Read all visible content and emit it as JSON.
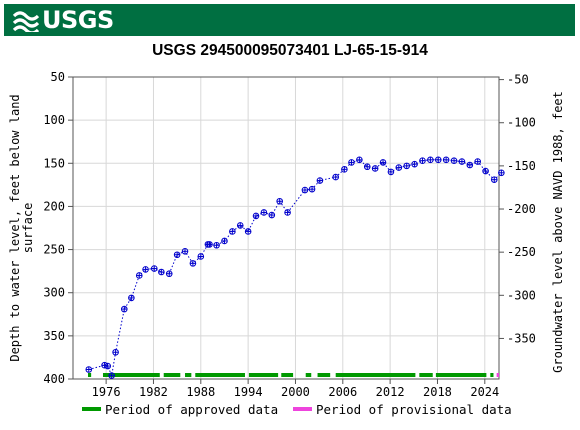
{
  "header": {
    "logo_text": "USGS",
    "logo_icon": "usgs-wave-icon",
    "banner_color": "#006f41"
  },
  "chart_data": {
    "type": "scatter",
    "title": "USGS 294500095073401 LJ-65-15-914",
    "ylabel_left": [
      "Depth to water level, feet below land",
      "surface"
    ],
    "ylabel_right": "Groundwater level above NAVD 1988, feet",
    "ylim_left": [
      400,
      50
    ],
    "ylim_right": [
      -397,
      -47
    ],
    "left_ticks": [
      "50",
      "100",
      "150",
      "200",
      "250",
      "300",
      "350",
      "400"
    ],
    "right_ticks": [
      "-50",
      "-100",
      "-150",
      "-200",
      "-250",
      "-300",
      "-350"
    ],
    "x_ticks": [
      "1976",
      "1982",
      "1988",
      "1994",
      "2000",
      "2006",
      "2012",
      "2018",
      "2024"
    ],
    "xlim": [
      1971.8,
      2025.8
    ],
    "grid": true,
    "marker_color": "#0000cc",
    "series": [
      {
        "points": [
          [
            1973.8,
            389
          ],
          [
            1975.8,
            384
          ],
          [
            1976.2,
            385
          ],
          [
            1976.7,
            396
          ],
          [
            1977.2,
            369
          ],
          [
            1978.3,
            319
          ],
          [
            1979.2,
            306
          ],
          [
            1980.2,
            280
          ],
          [
            1981.0,
            273
          ],
          [
            1982.1,
            272
          ],
          [
            1983.0,
            276
          ],
          [
            1984.0,
            278
          ],
          [
            1985.0,
            256
          ],
          [
            1986.0,
            252
          ],
          [
            1987.0,
            266
          ],
          [
            1988.0,
            258
          ],
          [
            1988.9,
            244
          ],
          [
            1989.1,
            244
          ],
          [
            1990.0,
            245
          ],
          [
            1991.0,
            240
          ],
          [
            1992.0,
            229
          ],
          [
            1993.0,
            222
          ],
          [
            1994.0,
            229
          ],
          [
            1995.0,
            211
          ],
          [
            1996.0,
            207
          ],
          [
            1997.0,
            210
          ],
          [
            1998.0,
            194
          ],
          [
            1999.0,
            207
          ],
          [
            2001.2,
            181
          ],
          [
            2002.1,
            180
          ],
          [
            2003.1,
            170
          ],
          [
            2005.1,
            166
          ],
          [
            2006.2,
            157
          ],
          [
            2007.1,
            149
          ],
          [
            2008.1,
            146
          ],
          [
            2009.1,
            154
          ],
          [
            2010.1,
            156
          ],
          [
            2011.1,
            149
          ],
          [
            2012.1,
            160
          ],
          [
            2013.1,
            155
          ],
          [
            2014.1,
            153
          ],
          [
            2015.1,
            151
          ],
          [
            2016.1,
            147
          ],
          [
            2017.1,
            146
          ],
          [
            2018.1,
            146
          ],
          [
            2019.1,
            146
          ],
          [
            2020.1,
            147
          ],
          [
            2021.1,
            148
          ],
          [
            2022.1,
            152
          ],
          [
            2023.1,
            148
          ],
          [
            2024.1,
            159
          ],
          [
            2025.2,
            169
          ],
          [
            2026.1,
            161
          ]
        ]
      }
    ],
    "approved_periods": [
      [
        1973.7,
        1974.1
      ],
      [
        1975.6,
        1982.8
      ],
      [
        1983.3,
        1985.4
      ],
      [
        1986.0,
        1986.8
      ],
      [
        1987.3,
        1993.6
      ],
      [
        1994.1,
        1997.8
      ],
      [
        1998.2,
        1999.7
      ],
      [
        2001.3,
        2002.0
      ],
      [
        2002.8,
        2004.4
      ],
      [
        2005.1,
        2015.2
      ],
      [
        2015.7,
        2017.4
      ],
      [
        2017.8,
        2024.2
      ],
      [
        2024.7,
        2025.1
      ]
    ],
    "provisional_periods": [
      [
        2025.5,
        2025.9
      ]
    ],
    "legend": {
      "approved_label": "Period of approved data",
      "approved_color": "#009900",
      "provisional_label": "Period of provisional data",
      "provisional_color": "#ee44dd"
    }
  }
}
